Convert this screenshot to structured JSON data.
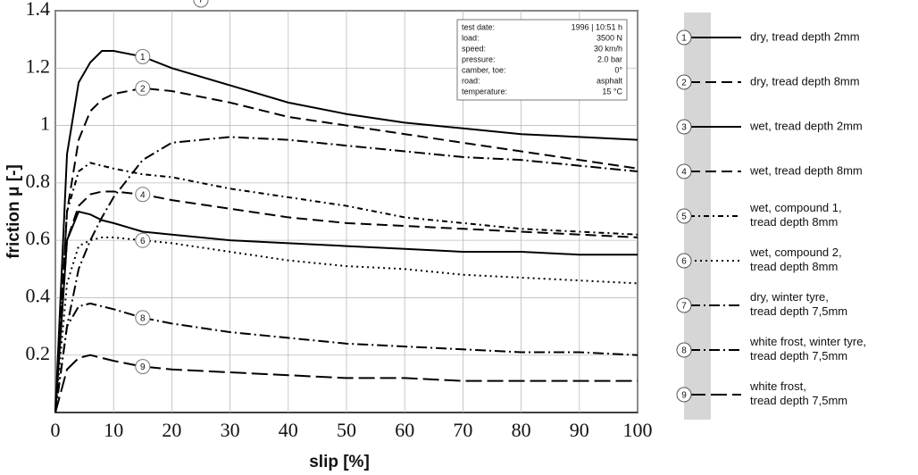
{
  "chart_data": {
    "type": "line",
    "x_label": "slip [%]",
    "y_label": "friction μ [-]",
    "x": [
      0,
      2,
      4,
      6,
      8,
      10,
      15,
      20,
      30,
      40,
      50,
      60,
      70,
      80,
      90,
      100
    ],
    "xlim": [
      0,
      100
    ],
    "xticks": [
      0,
      10,
      20,
      30,
      40,
      50,
      60,
      70,
      80,
      90,
      100
    ],
    "ylim": [
      0,
      1.4
    ],
    "yticks": [
      0.2,
      0.4,
      0.6,
      0.8,
      1,
      1.2,
      1.4
    ],
    "grid": true,
    "info_box": [
      [
        "test date:",
        "1996 | 10:51 h"
      ],
      [
        "load:",
        "3500 N"
      ],
      [
        "speed:",
        "30 km/h"
      ],
      [
        "pressure:",
        "2.0 bar"
      ],
      [
        "camber, toe:",
        "0°"
      ],
      [
        "road:",
        "asphalt"
      ],
      [
        "temperature:",
        "15 °C"
      ]
    ],
    "series": [
      {
        "id": "1",
        "name": "dry, tread depth 2mm",
        "color": "#000",
        "dash": "solid",
        "values": [
          0,
          0.9,
          1.15,
          1.22,
          1.26,
          1.26,
          1.24,
          1.2,
          1.14,
          1.08,
          1.04,
          1.01,
          0.99,
          0.97,
          0.96,
          0.95
        ]
      },
      {
        "id": "2",
        "name": "dry, tread depth 8mm",
        "color": "#000",
        "dash": "dashed",
        "values": [
          0,
          0.7,
          0.95,
          1.05,
          1.09,
          1.11,
          1.13,
          1.12,
          1.08,
          1.03,
          1.0,
          0.97,
          0.94,
          0.91,
          0.88,
          0.85
        ]
      },
      {
        "id": "3",
        "name": "wet, tread depth 2mm",
        "color": "#000",
        "dash": "solid",
        "values": [
          0,
          0.6,
          0.7,
          0.69,
          0.67,
          0.66,
          0.63,
          0.62,
          0.6,
          0.59,
          0.58,
          0.57,
          0.56,
          0.56,
          0.55,
          0.55
        ]
      },
      {
        "id": "4",
        "name": "wet, tread depth 8mm",
        "color": "#000",
        "dash": "dashed",
        "values": [
          0,
          0.6,
          0.72,
          0.76,
          0.77,
          0.77,
          0.76,
          0.74,
          0.71,
          0.68,
          0.66,
          0.65,
          0.64,
          0.63,
          0.62,
          0.61
        ]
      },
      {
        "id": "5",
        "name": "wet, compound 1, tread depth 8mm",
        "color": "#000",
        "dash": "dotdash",
        "values": [
          0,
          0.7,
          0.84,
          0.87,
          0.86,
          0.85,
          0.83,
          0.82,
          0.78,
          0.75,
          0.72,
          0.68,
          0.66,
          0.64,
          0.63,
          0.62
        ]
      },
      {
        "id": "6",
        "name": "wet, compound 2, tread depth 8mm",
        "color": "#000",
        "dash": "dotted",
        "values": [
          0,
          0.45,
          0.58,
          0.6,
          0.61,
          0.61,
          0.6,
          0.59,
          0.56,
          0.53,
          0.51,
          0.5,
          0.48,
          0.47,
          0.46,
          0.45
        ]
      },
      {
        "id": "7",
        "name": "dry, winter tyre, tread depth 7,5mm",
        "color": "#000",
        "dash": "dashdot",
        "values": [
          0,
          0.3,
          0.5,
          0.6,
          0.68,
          0.75,
          0.88,
          0.94,
          0.96,
          0.95,
          0.93,
          0.91,
          0.89,
          0.88,
          0.86,
          0.84
        ]
      },
      {
        "id": "8",
        "name": "white frost, winter tyre, tread depth 7,5mm",
        "color": "#000",
        "dash": "dashdot",
        "values": [
          0,
          0.3,
          0.37,
          0.38,
          0.37,
          0.36,
          0.33,
          0.31,
          0.28,
          0.26,
          0.24,
          0.23,
          0.22,
          0.21,
          0.21,
          0.2
        ]
      },
      {
        "id": "9",
        "name": "white frost, tread depth 7,5mm",
        "color": "#000",
        "dash": "longdash",
        "values": [
          0,
          0.15,
          0.19,
          0.2,
          0.19,
          0.18,
          0.16,
          0.15,
          0.14,
          0.13,
          0.12,
          0.12,
          0.11,
          0.11,
          0.11,
          0.11
        ]
      }
    ]
  }
}
